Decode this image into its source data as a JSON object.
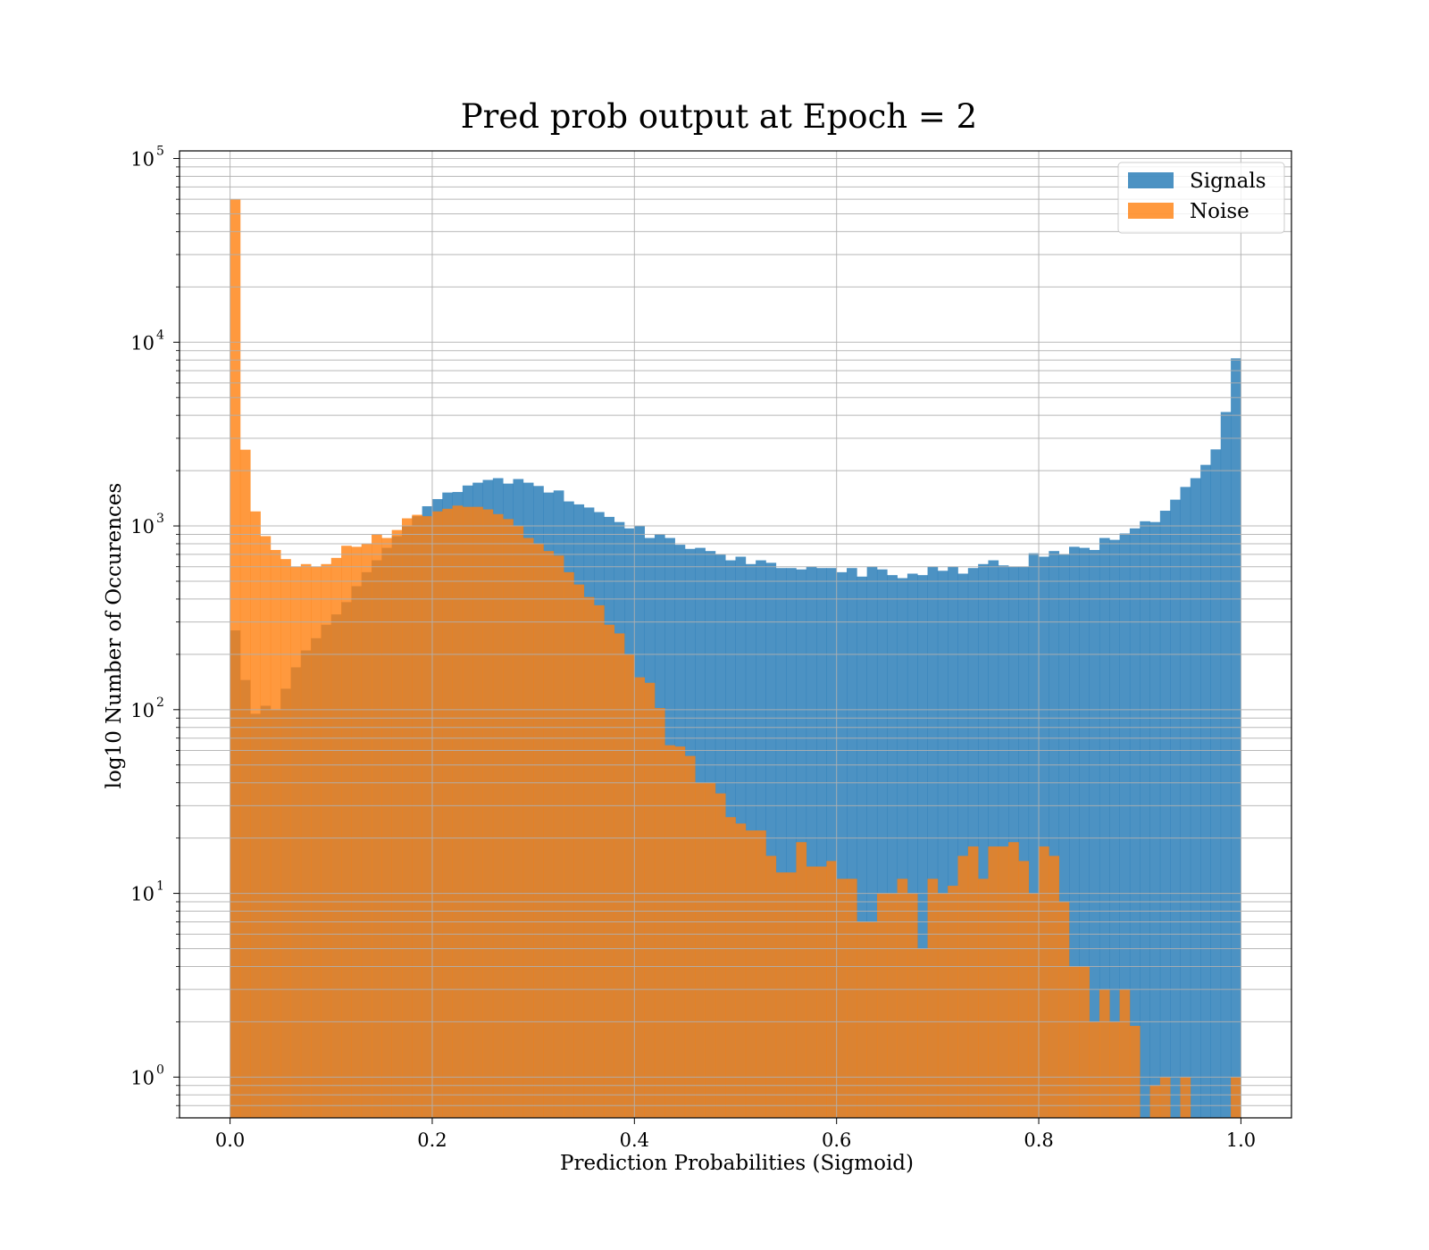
{
  "chart_data": {
    "type": "bar",
    "title": "Pred prob output at Epoch = 2",
    "xlabel": "Prediction Probabilities (Sigmoid)",
    "ylabel": "log10 Number of Occurences",
    "xlim": [
      -0.05,
      1.05
    ],
    "ylim": [
      0.6,
      110000
    ],
    "y_scale": "log",
    "grid": true,
    "legend_position": "upper right",
    "x_ticks": [
      "0.0",
      "0.2",
      "0.4",
      "0.6",
      "0.8",
      "1.0"
    ],
    "x_tick_values": [
      0.0,
      0.2,
      0.4,
      0.6,
      0.8,
      1.0
    ],
    "y_ticks": [
      {
        "base": "10",
        "exp": "0",
        "value": 1
      },
      {
        "base": "10",
        "exp": "1",
        "value": 10
      },
      {
        "base": "10",
        "exp": "2",
        "value": 100
      },
      {
        "base": "10",
        "exp": "3",
        "value": 1000
      },
      {
        "base": "10",
        "exp": "4",
        "value": 10000
      },
      {
        "base": "10",
        "exp": "5",
        "value": 100000
      }
    ],
    "bin_start": 0.0,
    "bin_end": 1.0,
    "bins": 100,
    "series": [
      {
        "name": "Signals",
        "color": "#1f77b4",
        "opacity": 0.8,
        "values": [
          270,
          145,
          95,
          105,
          100,
          130,
          170,
          210,
          245,
          290,
          330,
          385,
          470,
          560,
          650,
          760,
          880,
          1000,
          1130,
          1280,
          1400,
          1520,
          1530,
          1660,
          1720,
          1780,
          1820,
          1700,
          1800,
          1720,
          1650,
          1520,
          1560,
          1360,
          1310,
          1260,
          1190,
          1120,
          1050,
          970,
          1000,
          860,
          900,
          860,
          790,
          750,
          760,
          730,
          700,
          650,
          680,
          620,
          650,
          630,
          590,
          590,
          580,
          600,
          590,
          590,
          560,
          590,
          530,
          600,
          580,
          540,
          520,
          550,
          540,
          600,
          570,
          600,
          550,
          590,
          620,
          650,
          610,
          600,
          600,
          710,
          680,
          730,
          700,
          770,
          760,
          740,
          860,
          840,
          910,
          970,
          1060,
          1050,
          1210,
          1390,
          1630,
          1820,
          2150,
          2610,
          4170,
          8170
        ]
      },
      {
        "name": "Noise",
        "color": "#ff7f0e",
        "opacity": 0.8,
        "values": [
          60000,
          2600,
          1200,
          880,
          740,
          660,
          600,
          620,
          600,
          620,
          670,
          780,
          770,
          800,
          900,
          860,
          950,
          1100,
          1150,
          1130,
          1200,
          1240,
          1290,
          1270,
          1270,
          1230,
          1160,
          1090,
          1000,
          860,
          800,
          730,
          690,
          560,
          480,
          410,
          370,
          290,
          260,
          200,
          150,
          140,
          102,
          64,
          63,
          56,
          40,
          40,
          35,
          26,
          24,
          22,
          22,
          16,
          13,
          13,
          19,
          14,
          14,
          15,
          12,
          12,
          7,
          7,
          10,
          10,
          12,
          10,
          5,
          12,
          10,
          11,
          16,
          18,
          12,
          18,
          18,
          19,
          15,
          10,
          18,
          16,
          9,
          4,
          4,
          2,
          3,
          2,
          3,
          1.9,
          0.5,
          0.9,
          1,
          0.6,
          1,
          0.5,
          0.5,
          0.5,
          0.5,
          1
        ]
      }
    ]
  }
}
